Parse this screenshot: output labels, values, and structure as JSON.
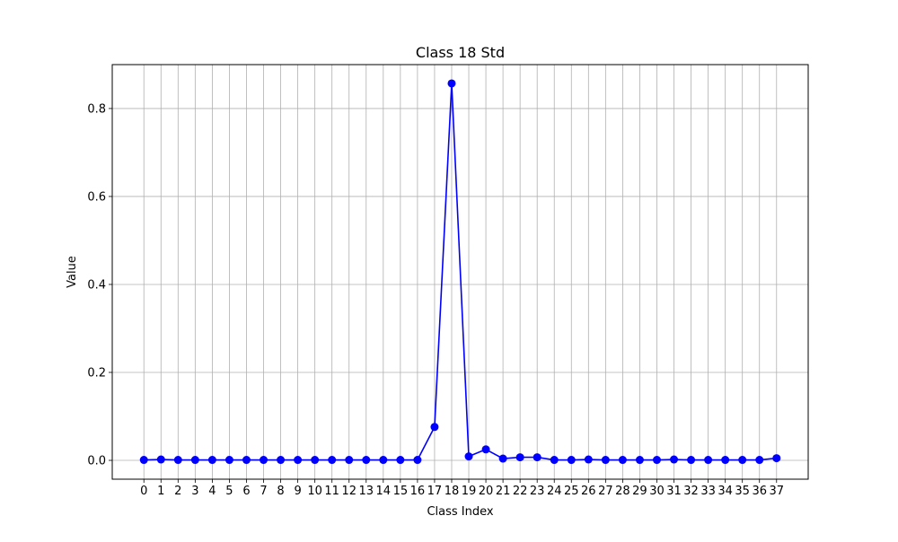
{
  "chart_data": {
    "type": "line",
    "title": "Class 18 Std",
    "xlabel": "Class Index",
    "ylabel": "Value",
    "x": [
      0,
      1,
      2,
      3,
      4,
      5,
      6,
      7,
      8,
      9,
      10,
      11,
      12,
      13,
      14,
      15,
      16,
      17,
      18,
      19,
      20,
      21,
      22,
      23,
      24,
      25,
      26,
      27,
      28,
      29,
      30,
      31,
      32,
      33,
      34,
      35,
      36,
      37
    ],
    "series": [
      {
        "values": [
          0.001,
          0.002,
          0.001,
          0.001,
          0.001,
          0.001,
          0.001,
          0.001,
          0.001,
          0.001,
          0.001,
          0.001,
          0.001,
          0.001,
          0.001,
          0.001,
          0.001,
          0.076,
          0.857,
          0.009,
          0.025,
          0.004,
          0.007,
          0.007,
          0.001,
          0.001,
          0.002,
          0.001,
          0.001,
          0.001,
          0.001,
          0.002,
          0.001,
          0.001,
          0.001,
          0.001,
          0.001,
          0.005
        ],
        "color": "#0000ff"
      }
    ],
    "xlim": [
      -1.85,
      38.85
    ],
    "ylim": [
      -0.0428,
      0.8998
    ],
    "yticks": [
      0.0,
      0.2,
      0.4,
      0.6,
      0.8
    ],
    "ytick_labels": [
      "0.0",
      "0.2",
      "0.4",
      "0.6",
      "0.8"
    ],
    "grid": true,
    "grid_color": "#b0b0b0",
    "marker": "circle"
  }
}
